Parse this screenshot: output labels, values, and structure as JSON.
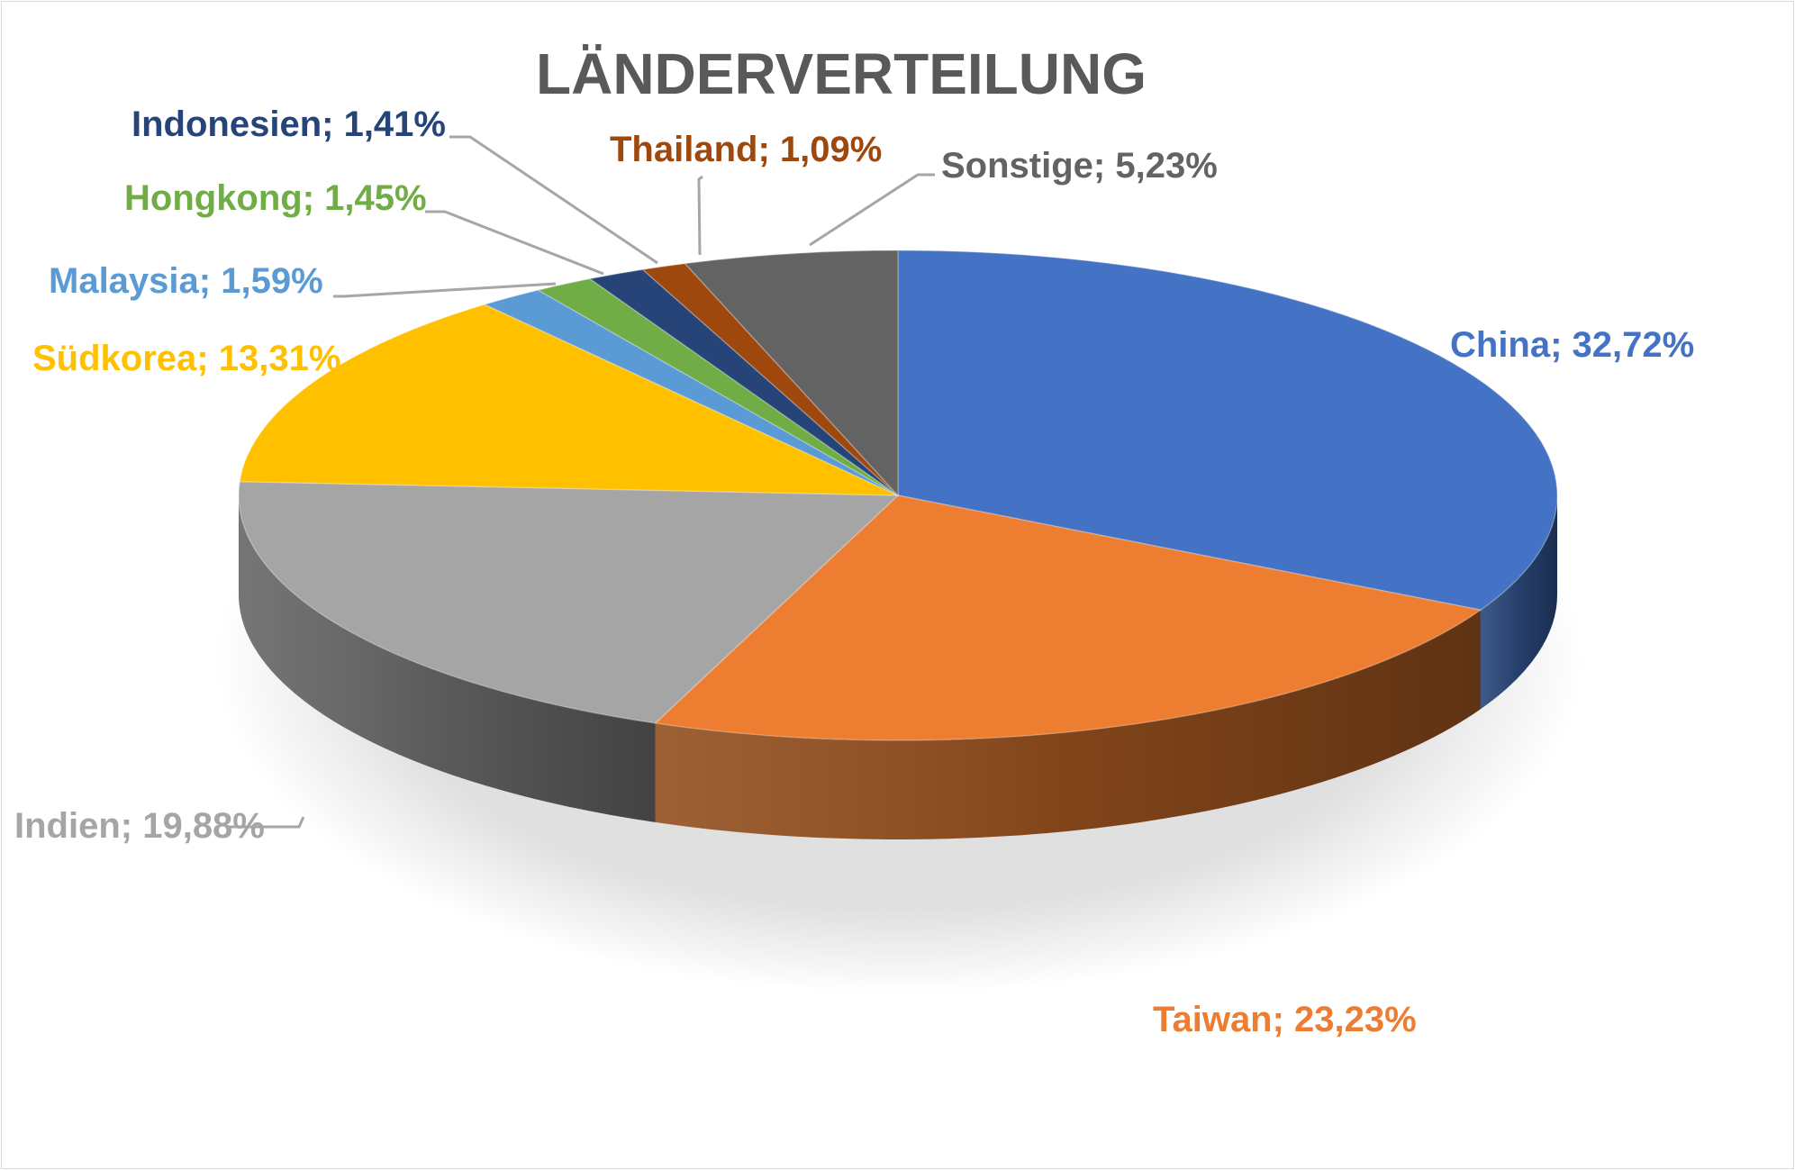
{
  "chart_data": {
    "type": "pie",
    "title": "LÄNDERVERTEILUNG",
    "slices": [
      {
        "label": "China; 32,72%",
        "name": "China",
        "value": 32.72,
        "color": "#4472C4"
      },
      {
        "label": "Taiwan; 23,23%",
        "name": "Taiwan",
        "value": 23.23,
        "color": "#ED7D31"
      },
      {
        "label": "Indien; 19,88%",
        "name": "Indien",
        "value": 19.88,
        "color": "#A5A5A5"
      },
      {
        "label": "Südkorea; 13,31%",
        "name": "Südkorea",
        "value": 13.31,
        "color": "#FFC000"
      },
      {
        "label": "Malaysia; 1,59%",
        "name": "Malaysia",
        "value": 1.59,
        "color": "#5B9BD5"
      },
      {
        "label": "Hongkong; 1,45%",
        "name": "Hongkong",
        "value": 1.45,
        "color": "#70AD47"
      },
      {
        "label": "Indonesien; 1,41%",
        "name": "Indonesien",
        "value": 1.41,
        "color": "#264478"
      },
      {
        "label": "Thailand; 1,09%",
        "name": "Thailand",
        "value": 1.09,
        "color": "#9E480E"
      },
      {
        "label": "Sonstige; 5,23%",
        "name": "Sonstige",
        "value": 5.23,
        "color": "#636363"
      }
    ]
  }
}
